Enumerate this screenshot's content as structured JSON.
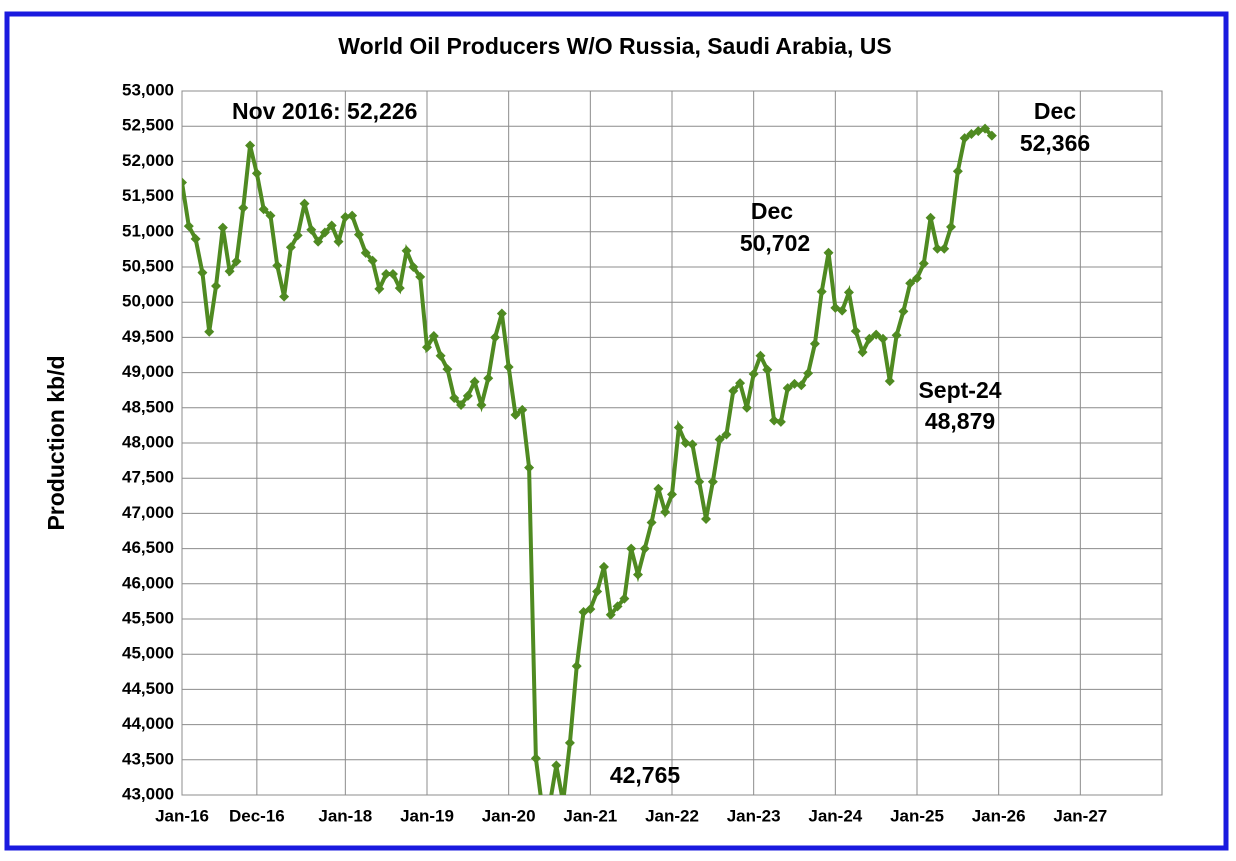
{
  "chart_data": {
    "type": "line",
    "title": "World Oil Producers W/O Russia, Saudi Arabia, US",
    "y_label": "Production kb/d",
    "x": [
      "Jan-16",
      "Feb-16",
      "Mar-16",
      "Apr-16",
      "May-16",
      "Jun-16",
      "Jul-16",
      "Aug-16",
      "Sep-16",
      "Oct-16",
      "Nov-16",
      "Dec-16",
      "Jan-17",
      "Feb-17",
      "Mar-17",
      "Apr-17",
      "May-17",
      "Jun-17",
      "Jul-17",
      "Aug-17",
      "Sep-17",
      "Oct-17",
      "Nov-17",
      "Dec-17",
      "Jan-18",
      "Feb-18",
      "Mar-18",
      "Apr-18",
      "May-18",
      "Jun-18",
      "Jul-18",
      "Aug-18",
      "Sep-18",
      "Oct-18",
      "Nov-18",
      "Dec-18",
      "Jan-19",
      "Feb-19",
      "Mar-19",
      "Apr-19",
      "May-19",
      "Jun-19",
      "Jul-19",
      "Aug-19",
      "Sep-19",
      "Oct-19",
      "Nov-19",
      "Dec-19",
      "Jan-20",
      "Feb-20",
      "Mar-20",
      "Apr-20",
      "May-20",
      "Jun-20",
      "Jul-20",
      "Aug-20",
      "Sep-20",
      "Oct-20",
      "Nov-20",
      "Dec-20",
      "Jan-21",
      "Feb-21",
      "Mar-21",
      "Apr-21",
      "May-21",
      "Jun-21",
      "Jul-21",
      "Aug-21",
      "Sep-21",
      "Oct-21",
      "Nov-21",
      "Dec-21",
      "Jan-22",
      "Feb-22",
      "Mar-22",
      "Apr-22",
      "May-22",
      "Jun-22",
      "Jul-22",
      "Aug-22",
      "Sep-22",
      "Oct-22",
      "Nov-22",
      "Dec-22",
      "Jan-23",
      "Feb-23",
      "Mar-23",
      "Apr-23",
      "May-23",
      "Jun-23",
      "Jul-23",
      "Aug-23",
      "Sep-23",
      "Oct-23",
      "Nov-23",
      "Dec-23",
      "Jan-24",
      "Feb-24",
      "Mar-24",
      "Apr-24",
      "May-24",
      "Jun-24",
      "Jul-24",
      "Aug-24",
      "Sep-24",
      "Oct-24",
      "Nov-24",
      "Dec-24",
      "Jan-25",
      "Feb-25",
      "Mar-25",
      "Apr-25",
      "May-25",
      "Jun-25",
      "Jul-25",
      "Aug-25",
      "Sep-25",
      "Oct-25",
      "Nov-25",
      "Dec-25"
    ],
    "series": [
      {
        "color": "#4f8a21",
        "values": [
          51700,
          51080,
          50900,
          50420,
          49580,
          50230,
          51060,
          50440,
          50580,
          51340,
          52226,
          51830,
          51320,
          51230,
          50520,
          50080,
          50780,
          50950,
          51400,
          51030,
          50860,
          50990,
          51090,
          50860,
          51210,
          51230,
          50960,
          50700,
          50590,
          50190,
          50400,
          50400,
          50200,
          50730,
          50500,
          50360,
          49360,
          49520,
          49240,
          49050,
          48640,
          48540,
          48670,
          48870,
          48540,
          48920,
          49500,
          49840,
          49080,
          48400,
          48470,
          47650,
          43520,
          42765,
          42850,
          43420,
          42900,
          43740,
          44830,
          45600,
          45640,
          45890,
          46240,
          45560,
          45680,
          45790,
          46500,
          46130,
          46500,
          46870,
          47350,
          47020,
          47270,
          48220,
          48000,
          47980,
          47450,
          46920,
          47450,
          48050,
          48120,
          48740,
          48850,
          48500,
          48980,
          49240,
          49040,
          48320,
          48300,
          48780,
          48840,
          48820,
          48990,
          49410,
          50150,
          50702,
          49920,
          49880,
          50140,
          49590,
          49290,
          49480,
          49540,
          49480,
          48879,
          49530,
          49870,
          50270,
          50340,
          50550,
          51200,
          50760,
          50760,
          51070,
          51860,
          52330,
          52390,
          52430,
          52466,
          52366
        ]
      }
    ],
    "xlim": [
      "Jan-16",
      "Jan-28"
    ],
    "xticks": [
      "Jan-16",
      "Dec-16",
      "Jan-18",
      "Jan-19",
      "Jan-20",
      "Jan-21",
      "Jan-22",
      "Jan-23",
      "Jan-24",
      "Jan-25",
      "Jan-26",
      "Jan-27"
    ],
    "ylim": [
      43000,
      53000
    ],
    "yticks": [
      {
        "value": 43000,
        "label": "43,000"
      },
      {
        "value": 43500,
        "label": "43,500"
      },
      {
        "value": 44000,
        "label": "44,000"
      },
      {
        "value": 44500,
        "label": "44,500"
      },
      {
        "value": 45000,
        "label": "45,000"
      },
      {
        "value": 45500,
        "label": "45,500"
      },
      {
        "value": 46000,
        "label": "46,000"
      },
      {
        "value": 46500,
        "label": "46,500"
      },
      {
        "value": 47000,
        "label": "47,000"
      },
      {
        "value": 47500,
        "label": "47,500"
      },
      {
        "value": 48000,
        "label": "48,000"
      },
      {
        "value": 48500,
        "label": "48,500"
      },
      {
        "value": 49000,
        "label": "49,000"
      },
      {
        "value": 49500,
        "label": "49,500"
      },
      {
        "value": 50000,
        "label": "50,000"
      },
      {
        "value": 50500,
        "label": "50,500"
      },
      {
        "value": 51000,
        "label": "51,000"
      },
      {
        "value": 51500,
        "label": "51,500"
      },
      {
        "value": 52000,
        "label": "52,000"
      },
      {
        "value": 52500,
        "label": "52,500"
      },
      {
        "value": 53000,
        "label": "53,000"
      }
    ],
    "grid": true,
    "annotations": [
      "Nov 2016: 52,226",
      "Dec",
      "52,366",
      "Dec",
      "50,702",
      "Sept-24",
      "48,879",
      "42,765"
    ]
  }
}
